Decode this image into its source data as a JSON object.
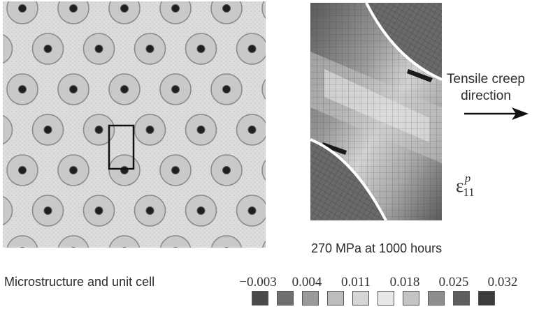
{
  "creep_label": [
    "Tensile creep",
    "direction"
  ],
  "strain_symbol": {
    "base": "ε",
    "sub": "11",
    "sup": "p"
  },
  "load_condition": "270 MPa at 1000 hours",
  "microstructure_caption": "Microstructure and unit cell",
  "colorbar": {
    "ticks": [
      "−0.003",
      "0.004",
      "0.011",
      "0.018",
      "0.025",
      "0.032"
    ],
    "colors": [
      "#4a4a4a",
      "#6f6f6f",
      "#9a9a9a",
      "#bdbdbd",
      "#d6d6d6",
      "#e8e8e8",
      "#c4c4c4",
      "#8e8e8e",
      "#5e5e5e",
      "#3c3c3c"
    ]
  }
}
